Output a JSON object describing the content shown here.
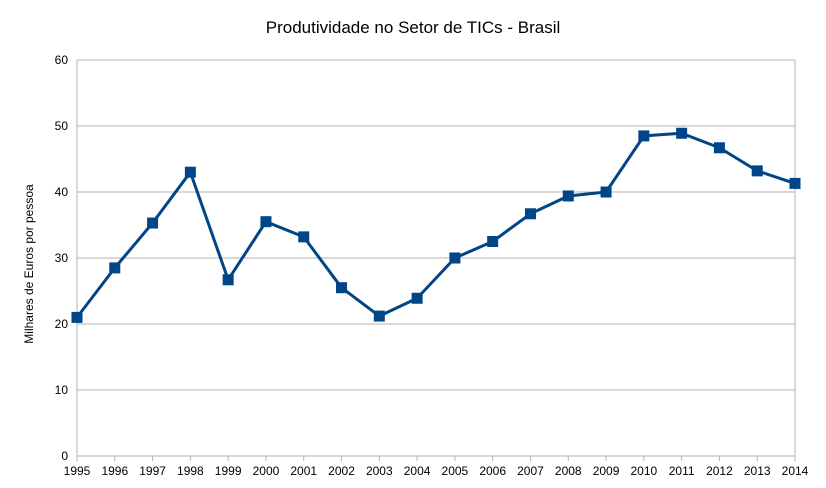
{
  "chart_data": {
    "type": "line",
    "title": "Produtividade no Setor de TICs - Brasil",
    "xlabel": "",
    "ylabel": "Milhares de Euros por pessoa",
    "x": [
      "1995",
      "1996",
      "1997",
      "1998",
      "1999",
      "2000",
      "2001",
      "2002",
      "2003",
      "2004",
      "2005",
      "2006",
      "2007",
      "2008",
      "2009",
      "2010",
      "2011",
      "2012",
      "2013",
      "2014"
    ],
    "series": [
      {
        "values": [
          21.0,
          28.5,
          35.3,
          43.0,
          26.7,
          35.5,
          33.2,
          25.5,
          21.2,
          23.9,
          30.0,
          32.5,
          36.7,
          39.4,
          40.0,
          48.5,
          48.9,
          46.7,
          43.2,
          41.3
        ]
      }
    ],
    "ylim": [
      0,
      60
    ],
    "yticks": [
      0,
      10,
      20,
      30,
      40,
      50,
      60
    ],
    "grid": true,
    "legend": "none",
    "colors": {
      "line": "#004586",
      "marker": "#004586",
      "grid": "#b3b3b3",
      "axis": "#b3b3b3"
    }
  }
}
